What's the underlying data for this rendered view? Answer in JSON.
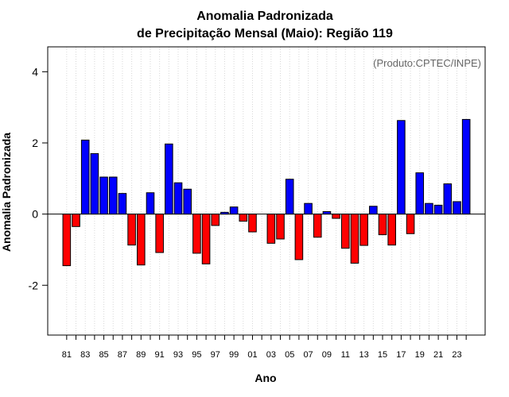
{
  "chart_data": {
    "type": "bar",
    "title": "Anomalia Padronizada",
    "subtitle": "de Precipitação Mensal (Maio): Região 119",
    "xlabel": "Ano",
    "ylabel": "Anomalia Padronizada",
    "credit": "(Produto:CPTEC/INPE)",
    "ylim": [
      -3.4,
      4.7
    ],
    "yticks": [
      -2,
      0,
      2,
      4
    ],
    "grid": "vertical dotted",
    "categories": [
      "81",
      "82",
      "83",
      "84",
      "85",
      "86",
      "87",
      "88",
      "89",
      "90",
      "91",
      "92",
      "93",
      "94",
      "95",
      "96",
      "97",
      "98",
      "99",
      "00",
      "01",
      "02",
      "03",
      "04",
      "05",
      "06",
      "07",
      "08",
      "09",
      "10",
      "11",
      "12",
      "13",
      "14",
      "15",
      "16",
      "17",
      "18",
      "19",
      "20",
      "21",
      "22",
      "23",
      "24"
    ],
    "x_tick_labels": [
      "81",
      "83",
      "85",
      "87",
      "89",
      "91",
      "93",
      "95",
      "97",
      "99",
      "01",
      "03",
      "05",
      "07",
      "09",
      "11",
      "13",
      "15",
      "17",
      "19",
      "21",
      "23"
    ],
    "values": [
      -1.45,
      -0.35,
      2.08,
      1.7,
      1.04,
      1.04,
      0.58,
      -0.87,
      -1.43,
      0.6,
      -1.08,
      1.97,
      0.88,
      0.7,
      -1.1,
      -1.4,
      -0.32,
      0.05,
      0.2,
      -0.2,
      -0.5,
      0.0,
      -0.82,
      -0.7,
      0.98,
      -1.28,
      0.3,
      -0.65,
      0.07,
      -0.12,
      -0.96,
      -1.38,
      -0.88,
      0.22,
      -0.58,
      -0.87,
      2.63,
      -0.55,
      1.16,
      0.3,
      0.25,
      0.85,
      0.35,
      2.66
    ],
    "positive_color": "#0000ff",
    "negative_color": "#ff0000"
  }
}
